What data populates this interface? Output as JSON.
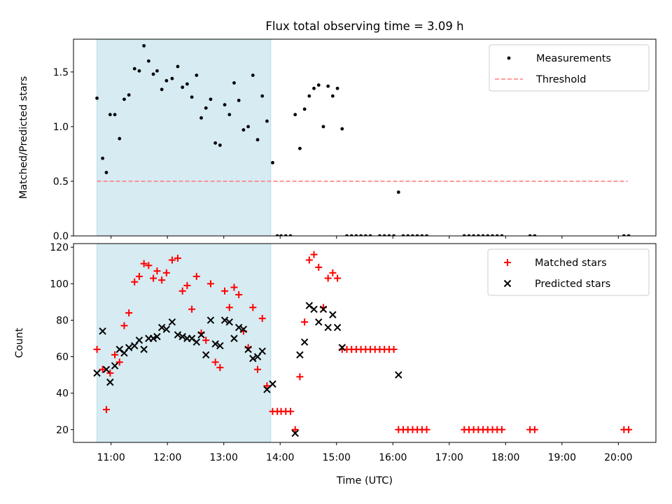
{
  "title": "Flux total observing time = 3.09 h",
  "colors": {
    "measurement": "#000000",
    "threshold": "#ff7f7f",
    "matched": "#ff0000",
    "predicted": "#000000",
    "shade": "#add8e6"
  },
  "chart_data": [
    {
      "type": "scatter",
      "ylabel": "Matched/Predicted stars",
      "ylim": [
        0,
        1.8
      ],
      "yticks": [
        0.0,
        0.5,
        1.0,
        1.5
      ],
      "ytick_labels": [
        "0.0",
        "0.5",
        "1.0",
        "1.5"
      ],
      "xlim": [
        "10:20",
        "20:40"
      ],
      "shaded_span": [
        "10:45",
        "13:50"
      ],
      "legend_position": "top-right",
      "legend": [
        "Measurements",
        "Threshold"
      ],
      "threshold": {
        "name": "Threshold",
        "value": 0.5,
        "x_range": [
          "10:45",
          "20:10"
        ]
      },
      "series": [
        {
          "name": "Measurements",
          "points": [
            [
              "10:45",
              1.26
            ],
            [
              "10:51",
              0.71
            ],
            [
              "10:55",
              0.58
            ],
            [
              "10:59",
              1.11
            ],
            [
              "11:04",
              1.11
            ],
            [
              "11:09",
              0.89
            ],
            [
              "11:14",
              1.25
            ],
            [
              "11:19",
              1.29
            ],
            [
              "11:25",
              1.53
            ],
            [
              "11:30",
              1.51
            ],
            [
              "11:35",
              1.74
            ],
            [
              "11:40",
              1.6
            ],
            [
              "11:45",
              1.48
            ],
            [
              "11:49",
              1.51
            ],
            [
              "11:54",
              1.34
            ],
            [
              "11:59",
              1.42
            ],
            [
              "12:05",
              1.44
            ],
            [
              "12:11",
              1.55
            ],
            [
              "12:16",
              1.36
            ],
            [
              "12:21",
              1.39
            ],
            [
              "12:26",
              1.27
            ],
            [
              "12:31",
              1.47
            ],
            [
              "12:36",
              1.08
            ],
            [
              "12:41",
              1.17
            ],
            [
              "12:46",
              1.25
            ],
            [
              "12:51",
              0.85
            ],
            [
              "12:56",
              0.83
            ],
            [
              "13:01",
              1.2
            ],
            [
              "13:06",
              1.11
            ],
            [
              "13:11",
              1.4
            ],
            [
              "13:16",
              1.24
            ],
            [
              "13:21",
              0.97
            ],
            [
              "13:26",
              1.0
            ],
            [
              "13:31",
              1.47
            ],
            [
              "13:36",
              0.88
            ],
            [
              "13:41",
              1.28
            ],
            [
              "13:46",
              1.05
            ],
            [
              "13:52",
              0.67
            ],
            [
              "13:57",
              0.0
            ],
            [
              "14:01",
              0.0
            ],
            [
              "14:06",
              0.0
            ],
            [
              "14:11",
              0.0
            ],
            [
              "14:16",
              1.11
            ],
            [
              "14:21",
              0.8
            ],
            [
              "14:26",
              1.16
            ],
            [
              "14:31",
              1.28
            ],
            [
              "14:36",
              1.35
            ],
            [
              "14:41",
              1.38
            ],
            [
              "14:46",
              1.0
            ],
            [
              "14:51",
              1.37
            ],
            [
              "14:56",
              1.28
            ],
            [
              "15:01",
              1.35
            ],
            [
              "15:06",
              0.98
            ],
            [
              "15:11",
              0.0
            ],
            [
              "15:16",
              0.0
            ],
            [
              "15:21",
              0.0
            ],
            [
              "15:26",
              0.0
            ],
            [
              "15:31",
              0.0
            ],
            [
              "15:36",
              0.0
            ],
            [
              "15:46",
              0.0
            ],
            [
              "15:51",
              0.0
            ],
            [
              "15:56",
              0.0
            ],
            [
              "16:01",
              0.0
            ],
            [
              "16:06",
              0.4
            ],
            [
              "16:11",
              0.0
            ],
            [
              "16:16",
              0.0
            ],
            [
              "16:21",
              0.0
            ],
            [
              "16:26",
              0.0
            ],
            [
              "16:31",
              0.0
            ],
            [
              "16:36",
              0.0
            ],
            [
              "17:16",
              0.0
            ],
            [
              "17:21",
              0.0
            ],
            [
              "17:26",
              0.0
            ],
            [
              "17:31",
              0.0
            ],
            [
              "17:36",
              0.0
            ],
            [
              "17:41",
              0.0
            ],
            [
              "17:46",
              0.0
            ],
            [
              "17:51",
              0.0
            ],
            [
              "17:56",
              0.0
            ],
            [
              "18:26",
              0.0
            ],
            [
              "18:31",
              0.0
            ],
            [
              "20:06",
              0.0
            ],
            [
              "20:11",
              0.0
            ]
          ]
        }
      ]
    },
    {
      "type": "scatter",
      "xlabel": "Time (UTC)",
      "ylabel": "Count",
      "ylim": [
        13,
        122
      ],
      "yticks": [
        20,
        40,
        60,
        80,
        100,
        120
      ],
      "xticks": [
        "11:00",
        "12:00",
        "13:00",
        "14:00",
        "15:00",
        "16:00",
        "17:00",
        "18:00",
        "19:00",
        "20:00"
      ],
      "xlim": [
        "10:20",
        "20:40"
      ],
      "shaded_span": [
        "10:45",
        "13:50"
      ],
      "legend_position": "top-right",
      "legend": [
        "Matched stars",
        "Predicted stars"
      ],
      "series": [
        {
          "name": "Matched stars",
          "marker": "+",
          "points": [
            [
              "10:45",
              64
            ],
            [
              "10:51",
              53
            ],
            [
              "10:55",
              31
            ],
            [
              "10:59",
              51
            ],
            [
              "11:04",
              61
            ],
            [
              "11:09",
              57
            ],
            [
              "11:14",
              77
            ],
            [
              "11:19",
              84
            ],
            [
              "11:25",
              101
            ],
            [
              "11:30",
              104
            ],
            [
              "11:35",
              111
            ],
            [
              "11:40",
              110
            ],
            [
              "11:45",
              103
            ],
            [
              "11:49",
              107
            ],
            [
              "11:54",
              102
            ],
            [
              "11:59",
              106
            ],
            [
              "12:05",
              113
            ],
            [
              "12:11",
              114
            ],
            [
              "12:16",
              96
            ],
            [
              "12:21",
              99
            ],
            [
              "12:26",
              86
            ],
            [
              "12:31",
              104
            ],
            [
              "12:36",
              73
            ],
            [
              "12:41",
              69
            ],
            [
              "12:46",
              100
            ],
            [
              "12:51",
              57
            ],
            [
              "12:56",
              54
            ],
            [
              "13:01",
              96
            ],
            [
              "13:06",
              87
            ],
            [
              "13:11",
              98
            ],
            [
              "13:16",
              94
            ],
            [
              "13:21",
              74
            ],
            [
              "13:26",
              65
            ],
            [
              "13:31",
              87
            ],
            [
              "13:36",
              53
            ],
            [
              "13:41",
              81
            ],
            [
              "13:46",
              44
            ],
            [
              "13:52",
              30
            ],
            [
              "13:57",
              30
            ],
            [
              "14:01",
              30
            ],
            [
              "14:06",
              30
            ],
            [
              "14:11",
              30
            ],
            [
              "14:16",
              20
            ],
            [
              "14:21",
              49
            ],
            [
              "14:26",
              79
            ],
            [
              "14:31",
              113
            ],
            [
              "14:36",
              116
            ],
            [
              "14:41",
              109
            ],
            [
              "14:46",
              87
            ],
            [
              "14:51",
              103
            ],
            [
              "14:56",
              106
            ],
            [
              "15:01",
              103
            ],
            [
              "15:06",
              64
            ],
            [
              "15:11",
              64
            ],
            [
              "15:16",
              64
            ],
            [
              "15:21",
              64
            ],
            [
              "15:26",
              64
            ],
            [
              "15:31",
              64
            ],
            [
              "15:36",
              64
            ],
            [
              "15:41",
              64
            ],
            [
              "15:46",
              64
            ],
            [
              "15:51",
              64
            ],
            [
              "15:56",
              64
            ],
            [
              "16:01",
              64
            ],
            [
              "16:06",
              20
            ],
            [
              "16:11",
              20
            ],
            [
              "16:16",
              20
            ],
            [
              "16:21",
              20
            ],
            [
              "16:26",
              20
            ],
            [
              "16:31",
              20
            ],
            [
              "16:36",
              20
            ],
            [
              "17:16",
              20
            ],
            [
              "17:21",
              20
            ],
            [
              "17:26",
              20
            ],
            [
              "17:31",
              20
            ],
            [
              "17:36",
              20
            ],
            [
              "17:41",
              20
            ],
            [
              "17:46",
              20
            ],
            [
              "17:51",
              20
            ],
            [
              "17:56",
              20
            ],
            [
              "18:26",
              20
            ],
            [
              "18:31",
              20
            ],
            [
              "20:06",
              20
            ],
            [
              "20:11",
              20
            ]
          ]
        },
        {
          "name": "Predicted stars",
          "marker": "x",
          "points": [
            [
              "10:45",
              51
            ],
            [
              "10:51",
              74
            ],
            [
              "10:55",
              53
            ],
            [
              "10:59",
              46
            ],
            [
              "11:04",
              55
            ],
            [
              "11:09",
              64
            ],
            [
              "11:14",
              62
            ],
            [
              "11:19",
              65
            ],
            [
              "11:25",
              66
            ],
            [
              "11:30",
              69
            ],
            [
              "11:35",
              64
            ],
            [
              "11:40",
              70
            ],
            [
              "11:45",
              70
            ],
            [
              "11:49",
              71
            ],
            [
              "11:54",
              76
            ],
            [
              "11:59",
              75
            ],
            [
              "12:05",
              79
            ],
            [
              "12:11",
              72
            ],
            [
              "12:16",
              71
            ],
            [
              "12:21",
              70
            ],
            [
              "12:26",
              70
            ],
            [
              "12:31",
              68
            ],
            [
              "12:36",
              72
            ],
            [
              "12:41",
              61
            ],
            [
              "12:46",
              80
            ],
            [
              "12:51",
              67
            ],
            [
              "12:56",
              66
            ],
            [
              "13:01",
              80
            ],
            [
              "13:06",
              79
            ],
            [
              "13:11",
              70
            ],
            [
              "13:16",
              76
            ],
            [
              "13:21",
              75
            ],
            [
              "13:26",
              64
            ],
            [
              "13:31",
              59
            ],
            [
              "13:36",
              60
            ],
            [
              "13:41",
              63
            ],
            [
              "13:46",
              42
            ],
            [
              "13:52",
              45
            ],
            [
              "14:16",
              18
            ],
            [
              "14:21",
              61
            ],
            [
              "14:26",
              68
            ],
            [
              "14:31",
              88
            ],
            [
              "14:36",
              86
            ],
            [
              "14:41",
              79
            ],
            [
              "14:46",
              86
            ],
            [
              "14:51",
              76
            ],
            [
              "14:56",
              83
            ],
            [
              "15:01",
              76
            ],
            [
              "15:06",
              65
            ],
            [
              "16:06",
              50
            ]
          ]
        }
      ]
    }
  ]
}
